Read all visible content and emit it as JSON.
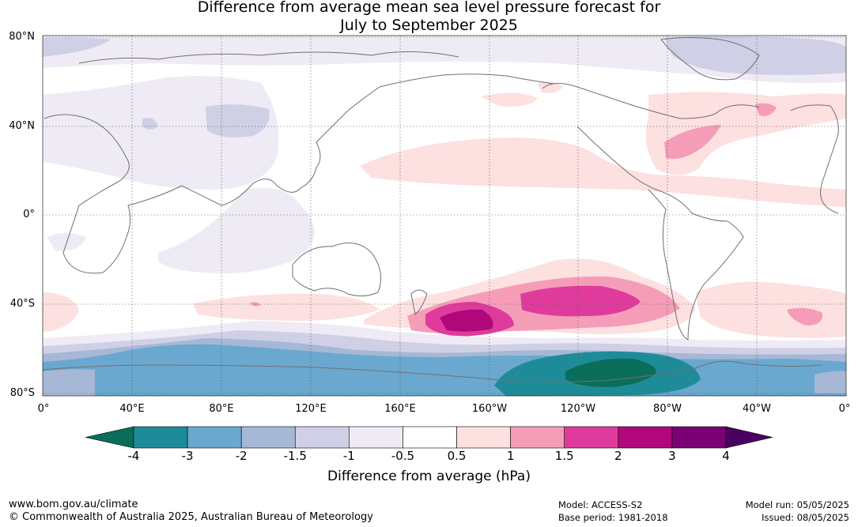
{
  "title": {
    "line1": "Difference from average mean sea level pressure forecast for",
    "line2": "July to September 2025"
  },
  "axes": {
    "lat_labels": [
      "80°N",
      "40°N",
      "0°",
      "40°S",
      "80°S"
    ],
    "lon_labels": [
      "0°",
      "40°E",
      "80°E",
      "120°E",
      "160°E",
      "160°W",
      "120°W",
      "80°W",
      "40°W",
      "0°"
    ]
  },
  "colorbar": {
    "title": "Difference from average (hPa)",
    "ticks": [
      "-4",
      "-3",
      "-2",
      "-1.5",
      "-1",
      "-0.5",
      "0.5",
      "1",
      "1.5",
      "2",
      "3",
      "4"
    ],
    "colors": [
      "#0b6e5a",
      "#1e8c98",
      "#6aa8cf",
      "#a6b8d6",
      "#cfd0e6",
      "#efebf4",
      "#ffffff",
      "#fde0e0",
      "#f59db8",
      "#de3b9c",
      "#b0077a",
      "#7a0075",
      "#4a0060"
    ]
  },
  "footer": {
    "url": "www.bom.gov.au/climate",
    "copyright": "© Commonwealth of Australia 2025, Australian Bureau of Meteorology",
    "model": "Model: ACCESS-S2",
    "base_period": "Base period: 1981-2018",
    "model_run": "Model run: 05/05/2025",
    "issued": "Issued: 08/05/2025"
  }
}
